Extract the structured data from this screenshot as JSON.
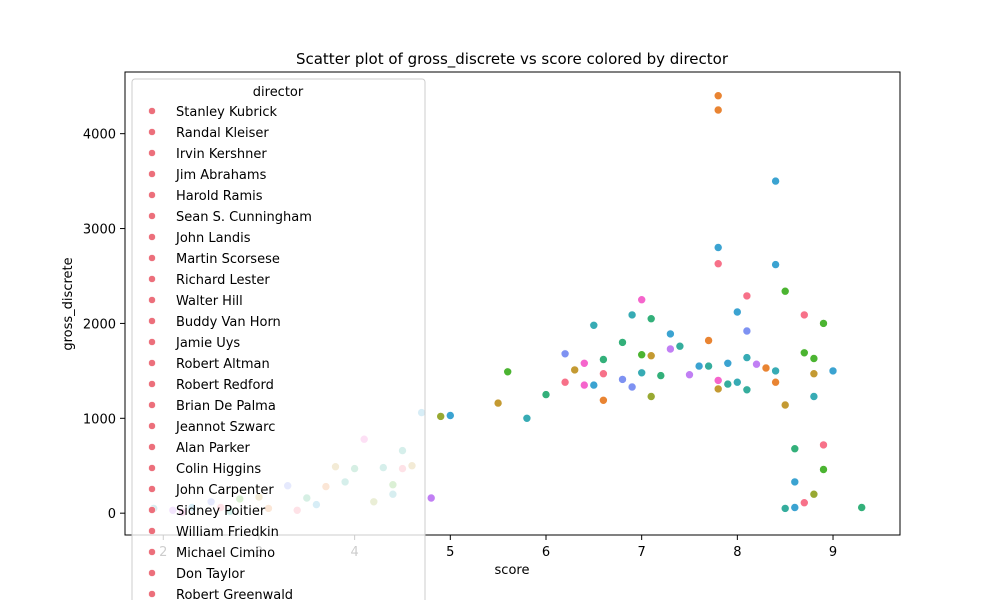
{
  "chart_data": {
    "type": "scatter",
    "title": "Scatter plot of gross_discrete vs score colored by director",
    "xlabel": "score",
    "ylabel": "gross_discrete",
    "xlim": [
      1.6,
      9.7
    ],
    "ylim": [
      -230,
      4650
    ],
    "x_ticks": [
      2,
      3,
      4,
      5,
      6,
      7,
      8,
      9
    ],
    "x_tick_labels": [
      "2",
      "3",
      "4",
      "5",
      "6",
      "7",
      "8",
      "9"
    ],
    "y_ticks": [
      0,
      1000,
      2000,
      3000,
      4000
    ],
    "y_tick_labels": [
      "0",
      "1000",
      "2000",
      "3000",
      "4000"
    ],
    "grid": false,
    "legend": {
      "title": "director",
      "placement": "upper-left",
      "marker_color": "#ec6f7b",
      "entries": [
        "Stanley Kubrick",
        "Randal Kleiser",
        "Irvin Kershner",
        "Jim Abrahams",
        "Harold Ramis",
        "Sean S. Cunningham",
        "John Landis",
        "Martin Scorsese",
        "Richard Lester",
        "Walter Hill",
        "Buddy Van Horn",
        "Jamie Uys",
        "Robert Altman",
        "Robert Redford",
        "Brian De Palma",
        "Jeannot Szwarc",
        "Alan Parker",
        "Colin Higgins",
        "John Carpenter",
        "Sidney Poitier",
        "William Friedkin",
        "Michael Cimino",
        "Don Taylor",
        "Robert Greenwald"
      ]
    },
    "palette": [
      "#f77189",
      "#e98432",
      "#c49a32",
      "#98a932",
      "#4bb431",
      "#33b07a",
      "#35ad9d",
      "#37abb4",
      "#3ba3d1",
      "#7e92f2",
      "#c17ff4",
      "#f565cc"
    ],
    "points": [
      [
        7.8,
        4400,
        1
      ],
      [
        7.8,
        4250,
        1
      ],
      [
        8.4,
        3500,
        8
      ],
      [
        7.8,
        2800,
        8
      ],
      [
        7.8,
        2630,
        0
      ],
      [
        8.4,
        2620,
        8
      ],
      [
        8.5,
        2340,
        4
      ],
      [
        8.1,
        2290,
        0
      ],
      [
        7.0,
        2250,
        11
      ],
      [
        8.0,
        2120,
        8
      ],
      [
        6.9,
        2090,
        7
      ],
      [
        8.7,
        2090,
        0
      ],
      [
        7.1,
        2050,
        5
      ],
      [
        8.9,
        2000,
        4
      ],
      [
        6.5,
        1980,
        7
      ],
      [
        8.1,
        1920,
        9
      ],
      [
        7.3,
        1890,
        8
      ],
      [
        7.7,
        1820,
        1
      ],
      [
        6.8,
        1800,
        5
      ],
      [
        7.3,
        1730,
        10
      ],
      [
        7.4,
        1760,
        6
      ],
      [
        8.7,
        1690,
        4
      ],
      [
        6.2,
        1680,
        9
      ],
      [
        7.0,
        1670,
        4
      ],
      [
        7.1,
        1660,
        2
      ],
      [
        8.8,
        1630,
        4
      ],
      [
        8.1,
        1640,
        7
      ],
      [
        6.6,
        1620,
        5
      ],
      [
        7.9,
        1580,
        8
      ],
      [
        8.2,
        1570,
        10
      ],
      [
        6.4,
        1580,
        11
      ],
      [
        7.6,
        1550,
        8
      ],
      [
        7.7,
        1550,
        6
      ],
      [
        8.3,
        1530,
        1
      ],
      [
        8.4,
        1500,
        7
      ],
      [
        9.0,
        1500,
        8
      ],
      [
        5.6,
        1490,
        4
      ],
      [
        7.0,
        1480,
        7
      ],
      [
        8.8,
        1470,
        2
      ],
      [
        6.3,
        1510,
        2
      ],
      [
        7.5,
        1460,
        10
      ],
      [
        6.8,
        1410,
        9
      ],
      [
        7.2,
        1450,
        5
      ],
      [
        6.6,
        1470,
        0
      ],
      [
        7.8,
        1400,
        11
      ],
      [
        8.0,
        1380,
        7
      ],
      [
        6.2,
        1380,
        0
      ],
      [
        6.4,
        1350,
        11
      ],
      [
        6.5,
        1350,
        8
      ],
      [
        7.9,
        1360,
        6
      ],
      [
        6.9,
        1330,
        9
      ],
      [
        7.8,
        1310,
        2
      ],
      [
        8.4,
        1380,
        1
      ],
      [
        8.1,
        1300,
        6
      ],
      [
        6.0,
        1250,
        5
      ],
      [
        5.5,
        1160,
        2
      ],
      [
        8.5,
        1140,
        2
      ],
      [
        8.8,
        1230,
        7
      ],
      [
        7.1,
        1230,
        3
      ],
      [
        6.6,
        1190,
        1
      ],
      [
        4.7,
        1060,
        8
      ],
      [
        5.0,
        1030,
        8
      ],
      [
        4.9,
        1020,
        3
      ],
      [
        5.8,
        1000,
        7
      ],
      [
        8.9,
        720,
        0
      ],
      [
        8.9,
        460,
        4
      ],
      [
        8.8,
        200,
        3
      ],
      [
        8.7,
        110,
        0
      ],
      [
        9.3,
        60,
        5
      ],
      [
        8.5,
        50,
        6
      ],
      [
        8.6,
        60,
        8
      ],
      [
        8.6,
        330,
        8
      ],
      [
        8.6,
        680,
        5
      ],
      [
        4.1,
        780,
        11
      ],
      [
        4.5,
        660,
        6
      ],
      [
        4.6,
        500,
        2
      ],
      [
        4.5,
        470,
        0
      ],
      [
        3.8,
        490,
        2
      ],
      [
        4.0,
        470,
        5
      ],
      [
        4.3,
        480,
        6
      ],
      [
        4.4,
        300,
        4
      ],
      [
        3.9,
        330,
        6
      ],
      [
        3.3,
        290,
        9
      ],
      [
        3.7,
        280,
        1
      ],
      [
        3.5,
        160,
        5
      ],
      [
        3.0,
        170,
        2
      ],
      [
        2.8,
        150,
        4
      ],
      [
        2.5,
        120,
        9
      ],
      [
        2.6,
        60,
        0
      ],
      [
        2.3,
        60,
        8
      ],
      [
        1.9,
        50,
        7
      ],
      [
        2.1,
        30,
        10
      ],
      [
        2.2,
        10,
        11
      ],
      [
        2.7,
        20,
        6
      ],
      [
        3.1,
        50,
        1
      ],
      [
        3.4,
        30,
        0
      ],
      [
        3.6,
        90,
        8
      ],
      [
        4.2,
        120,
        3
      ],
      [
        4.4,
        200,
        7
      ],
      [
        4.8,
        160,
        10
      ]
    ]
  }
}
